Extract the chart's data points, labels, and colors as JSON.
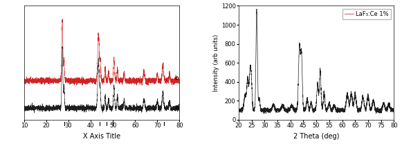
{
  "left_chart": {
    "xlabel": "X Axis Title",
    "xlim": [
      10,
      80
    ],
    "label_a": "a",
    "label_b": "b",
    "tick_positions": [
      28,
      44,
      47,
      50,
      73
    ],
    "line_color_black": "#111111",
    "line_color_red": "#cc1111",
    "bg_color": "#ffffff"
  },
  "right_chart": {
    "xlabel": "2 Theta (deg)",
    "ylabel": "Intensity (arb units)",
    "xlim": [
      20,
      80
    ],
    "ylim": [
      0,
      1200
    ],
    "yticks": [
      0,
      200,
      400,
      600,
      800,
      1000,
      1200
    ],
    "xticks": [
      20,
      25,
      30,
      35,
      40,
      45,
      50,
      55,
      60,
      65,
      70,
      75,
      80
    ],
    "legend_label": "LaF₃:Ce 1%",
    "line_color": "#111111",
    "legend_line_color": "#cc8888",
    "bg_color": "#ffffff"
  }
}
